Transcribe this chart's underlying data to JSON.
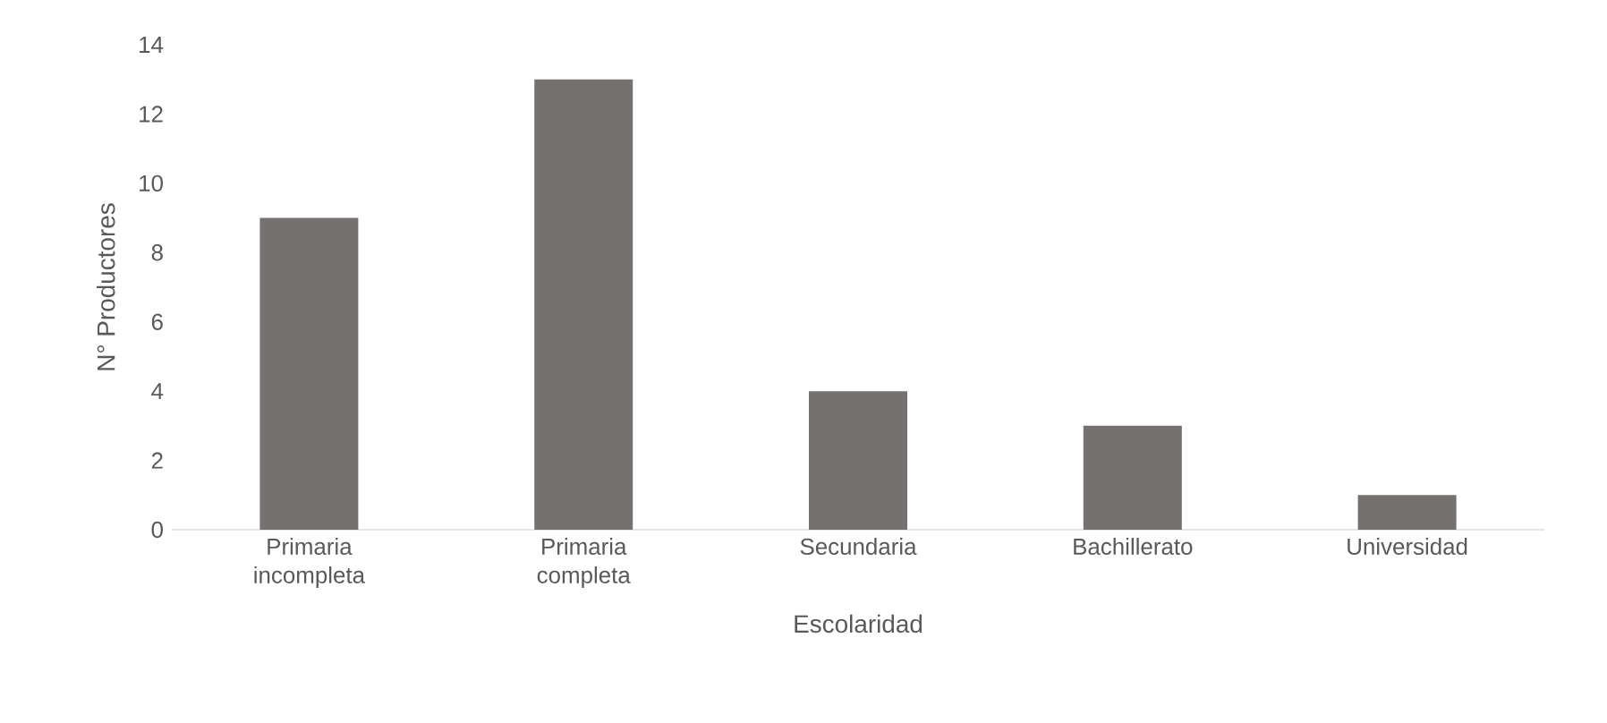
{
  "chart_data": {
    "type": "bar",
    "xlabel": "Escolaridad",
    "ylabel": "N° Productores",
    "categories": [
      "Primaria incompleta",
      "Primaria completa",
      "Secundaria",
      "Bachillerato",
      "Universidad"
    ],
    "values": [
      9,
      13,
      4,
      3,
      1
    ],
    "color": "#767171",
    "ylim": [
      0,
      14
    ],
    "yticks": [
      0,
      2,
      4,
      6,
      8,
      10,
      12,
      14
    ]
  }
}
